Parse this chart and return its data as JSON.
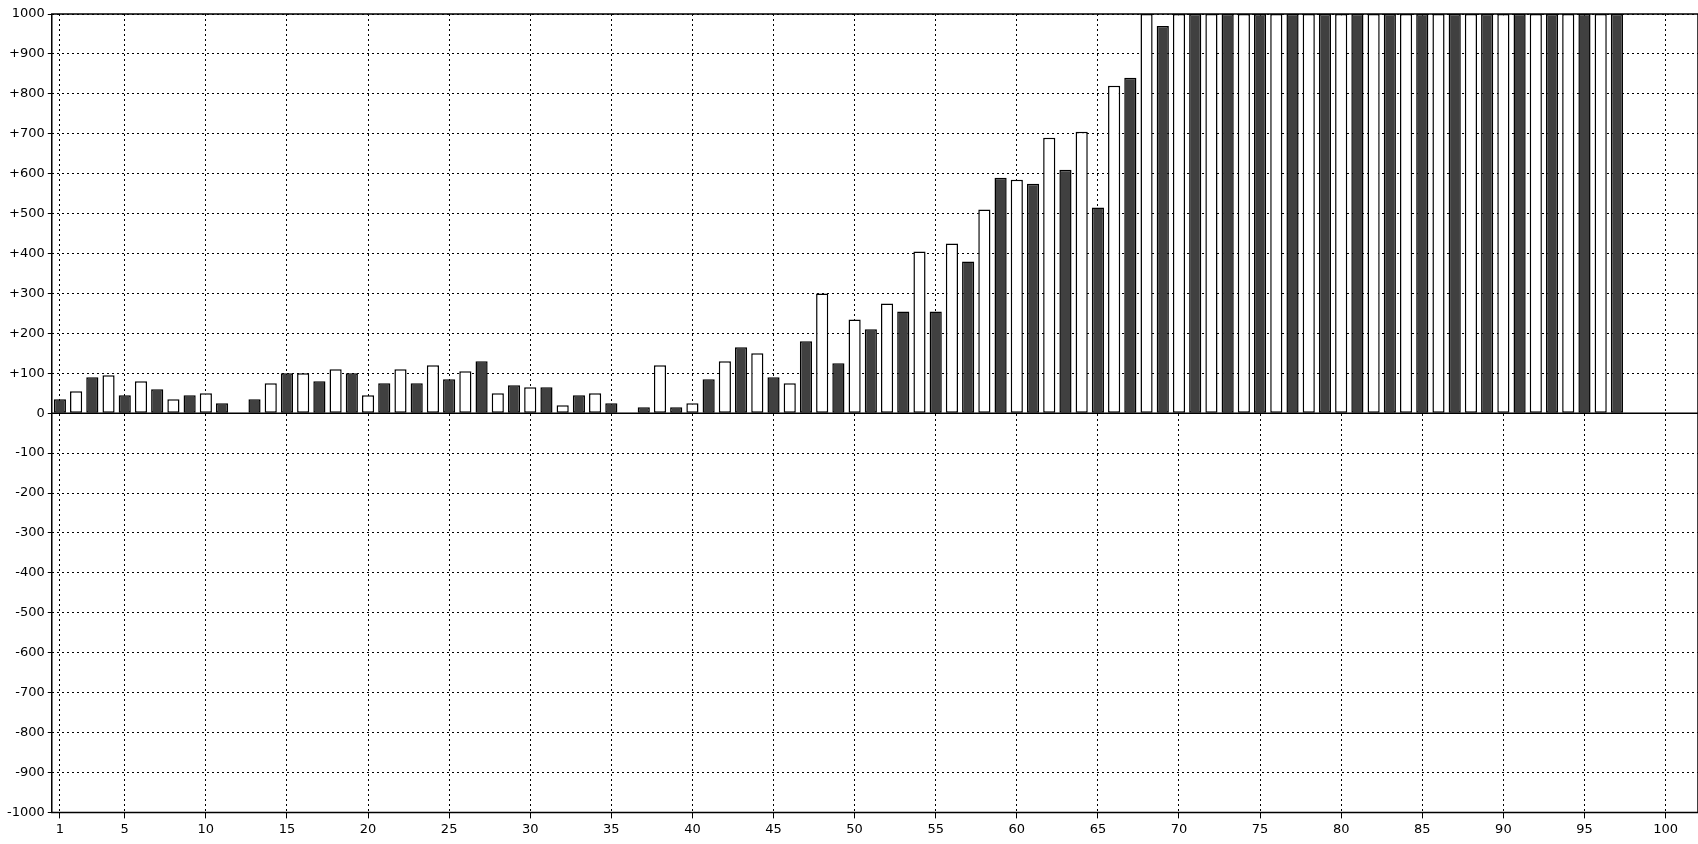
{
  "chart_data": {
    "type": "bar",
    "x": [
      1,
      2,
      3,
      4,
      5,
      6,
      7,
      8,
      9,
      10,
      11,
      12,
      13,
      14,
      15,
      16,
      17,
      18,
      19,
      20,
      21,
      22,
      23,
      24,
      25,
      26,
      27,
      28,
      29,
      30,
      31,
      32,
      33,
      34,
      35,
      36,
      37,
      38,
      39,
      40,
      41,
      42,
      43,
      44,
      45,
      46,
      47,
      48,
      49,
      50,
      51,
      52,
      53,
      54,
      55,
      56,
      57,
      58,
      59,
      60,
      61,
      62,
      63,
      64,
      65,
      66,
      67,
      68,
      69,
      70,
      71,
      72,
      73,
      74,
      75,
      76,
      77,
      78,
      79,
      80,
      81,
      82,
      83,
      84,
      85,
      86,
      87,
      88,
      89,
      90,
      91,
      92,
      93,
      94,
      95,
      96,
      97
    ],
    "values": [
      35,
      55,
      90,
      95,
      45,
      80,
      60,
      35,
      45,
      50,
      25,
      null,
      35,
      75,
      100,
      100,
      80,
      110,
      100,
      45,
      75,
      110,
      75,
      120,
      85,
      105,
      130,
      50,
      70,
      65,
      65,
      20,
      45,
      50,
      25,
      null,
      15,
      120,
      15,
      25,
      85,
      130,
      165,
      150,
      90,
      75,
      180,
      300,
      125,
      235,
      210,
      275,
      255,
      405,
      255,
      425,
      380,
      510,
      590,
      585,
      575,
      690,
      610,
      705,
      515,
      820,
      840,
      1000,
      970,
      1000,
      1000,
      1000,
      1000,
      1000,
      1000,
      1000,
      1000,
      1000,
      1000,
      1000,
      1000,
      1000,
      1000,
      1000,
      1000,
      1000,
      1000,
      1000,
      1000,
      1000,
      1000,
      1000,
      1000,
      1000,
      1000,
      1000,
      1000
    ],
    "colors": [
      "#404040",
      "#ffffff",
      "#404040",
      "#ffffff",
      "#404040",
      "#ffffff",
      "#404040",
      "#ffffff",
      "#404040",
      "#ffffff",
      "#404040",
      "#ffffff",
      "#404040",
      "#ffffff",
      "#404040",
      "#ffffff",
      "#404040",
      "#ffffff",
      "#404040",
      "#ffffff",
      "#404040",
      "#ffffff",
      "#404040",
      "#ffffff",
      "#404040",
      "#ffffff",
      "#404040",
      "#ffffff",
      "#404040",
      "#ffffff",
      "#404040",
      "#ffffff",
      "#404040",
      "#ffffff",
      "#404040",
      "#ffffff",
      "#404040",
      "#ffffff",
      "#404040",
      "#ffffff",
      "#404040",
      "#ffffff",
      "#404040",
      "#ffffff",
      "#404040",
      "#ffffff",
      "#404040",
      "#ffffff",
      "#404040",
      "#ffffff",
      "#404040",
      "#ffffff",
      "#404040",
      "#ffffff",
      "#404040",
      "#ffffff",
      "#404040",
      "#ffffff",
      "#404040",
      "#ffffff",
      "#404040",
      "#ffffff",
      "#404040",
      "#ffffff",
      "#404040",
      "#ffffff",
      "#404040",
      "#ffffff",
      "#404040",
      "#ffffff",
      "#404040",
      "#ffffff",
      "#404040",
      "#ffffff",
      "#404040",
      "#ffffff",
      "#404040",
      "#ffffff",
      "#404040",
      "#ffffff",
      "#404040",
      "#ffffff",
      "#404040",
      "#ffffff",
      "#404040",
      "#ffffff",
      "#404040",
      "#ffffff",
      "#404040",
      "#ffffff",
      "#404040",
      "#ffffff",
      "#404040",
      "#ffffff",
      "#404040",
      "#ffffff",
      "#404040"
    ],
    "xlim": [
      0.5,
      102
    ],
    "xticks": [
      1,
      5,
      10,
      15,
      20,
      25,
      30,
      35,
      40,
      45,
      50,
      55,
      60,
      65,
      70,
      75,
      80,
      85,
      90,
      95,
      100
    ],
    "ylim": [
      -1000,
      1000
    ],
    "yticks": [
      -1000,
      -900,
      -800,
      -700,
      -600,
      -500,
      -400,
      -300,
      -200,
      -100,
      0,
      {
        "value": 100,
        "label": "+100"
      },
      {
        "value": 200,
        "label": "+200"
      },
      {
        "value": 300,
        "label": "+300"
      },
      {
        "value": 400,
        "label": "+400"
      },
      {
        "value": 500,
        "label": "+500"
      },
      {
        "value": 600,
        "label": "+600"
      },
      {
        "value": 700,
        "label": "+700"
      },
      {
        "value": 800,
        "label": "+800"
      },
      {
        "value": 900,
        "label": "+900"
      },
      1000
    ],
    "grid": true,
    "legend": false
  }
}
